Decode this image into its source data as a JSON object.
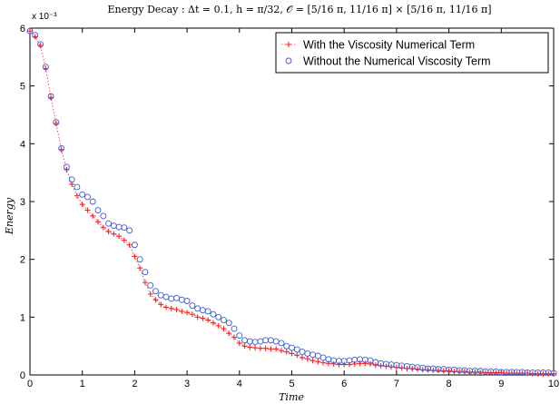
{
  "chart_data": {
    "type": "scatter",
    "title": "Energy Decay : Δt = 0.1, h = π/32,  𝒪 = [5/16 π, 11/16 π] × [5/16 π, 11/16 π]",
    "xlabel": "Time",
    "ylabel": "Energy",
    "y_multiplier": "x 10⁻³",
    "xlim": [
      0,
      10
    ],
    "ylim": [
      0,
      6
    ],
    "x_ticks": [
      0,
      1,
      2,
      3,
      4,
      5,
      6,
      7,
      8,
      9,
      10
    ],
    "y_ticks": [
      0,
      1,
      2,
      3,
      4,
      5,
      6
    ],
    "grid": false,
    "legend_position": "top-right",
    "series": [
      {
        "name": "With the Viscosity Numerical Term",
        "color": "#ff2020",
        "marker": "plus",
        "line": "dotted",
        "x": [
          0,
          0.1,
          0.2,
          0.3,
          0.4,
          0.5,
          0.6,
          0.7,
          0.8,
          0.9,
          1.0,
          1.1,
          1.2,
          1.3,
          1.4,
          1.5,
          1.6,
          1.7,
          1.8,
          1.9,
          2.0,
          2.1,
          2.2,
          2.3,
          2.4,
          2.5,
          2.6,
          2.7,
          2.8,
          2.9,
          3.0,
          3.1,
          3.2,
          3.3,
          3.4,
          3.5,
          3.6,
          3.7,
          3.8,
          3.9,
          4.0,
          4.1,
          4.2,
          4.3,
          4.4,
          4.5,
          4.6,
          4.7,
          4.8,
          4.9,
          5.0,
          5.1,
          5.2,
          5.3,
          5.4,
          5.5,
          5.6,
          5.7,
          5.8,
          5.9,
          6.0,
          6.1,
          6.2,
          6.3,
          6.4,
          6.5,
          6.6,
          6.7,
          6.8,
          6.9,
          7.0,
          7.1,
          7.2,
          7.3,
          7.4,
          7.5,
          7.6,
          7.7,
          7.8,
          7.9,
          8.0,
          8.1,
          8.2,
          8.3,
          8.4,
          8.5,
          8.6,
          8.7,
          8.8,
          8.9,
          9.0,
          9.1,
          9.2,
          9.3,
          9.4,
          9.5,
          9.6,
          9.7,
          9.8,
          9.9,
          10.0
        ],
        "y": [
          5.95,
          5.85,
          5.7,
          5.3,
          4.8,
          4.35,
          3.9,
          3.55,
          3.3,
          3.1,
          2.95,
          2.85,
          2.75,
          2.65,
          2.55,
          2.48,
          2.44,
          2.4,
          2.33,
          2.25,
          2.05,
          1.85,
          1.6,
          1.4,
          1.3,
          1.22,
          1.17,
          1.15,
          1.13,
          1.1,
          1.08,
          1.05,
          1.0,
          0.98,
          0.95,
          0.9,
          0.85,
          0.8,
          0.72,
          0.65,
          0.55,
          0.5,
          0.48,
          0.47,
          0.46,
          0.46,
          0.45,
          0.45,
          0.42,
          0.4,
          0.37,
          0.34,
          0.3,
          0.28,
          0.25,
          0.23,
          0.21,
          0.2,
          0.19,
          0.18,
          0.18,
          0.18,
          0.19,
          0.2,
          0.2,
          0.19,
          0.17,
          0.16,
          0.15,
          0.14,
          0.13,
          0.12,
          0.11,
          0.11,
          0.1,
          0.09,
          0.09,
          0.08,
          0.08,
          0.07,
          0.07,
          0.06,
          0.06,
          0.06,
          0.05,
          0.05,
          0.05,
          0.04,
          0.04,
          0.04,
          0.04,
          0.03,
          0.03,
          0.03,
          0.03,
          0.03,
          0.02,
          0.02,
          0.02,
          0.02,
          0.02
        ]
      },
      {
        "name": "Without the Numerical Viscosity Term",
        "color": "#3b5bd6",
        "marker": "circle",
        "line": "none",
        "x": [
          0,
          0.1,
          0.2,
          0.3,
          0.4,
          0.5,
          0.6,
          0.7,
          0.8,
          0.9,
          1.0,
          1.1,
          1.2,
          1.3,
          1.4,
          1.5,
          1.6,
          1.7,
          1.8,
          1.9,
          2.0,
          2.1,
          2.2,
          2.3,
          2.4,
          2.5,
          2.6,
          2.7,
          2.8,
          2.9,
          3.0,
          3.1,
          3.2,
          3.3,
          3.4,
          3.5,
          3.6,
          3.7,
          3.8,
          3.9,
          4.0,
          4.1,
          4.2,
          4.3,
          4.4,
          4.5,
          4.6,
          4.7,
          4.8,
          4.9,
          5.0,
          5.1,
          5.2,
          5.3,
          5.4,
          5.5,
          5.6,
          5.7,
          5.8,
          5.9,
          6.0,
          6.1,
          6.2,
          6.3,
          6.4,
          6.5,
          6.6,
          6.7,
          6.8,
          6.9,
          7.0,
          7.1,
          7.2,
          7.3,
          7.4,
          7.5,
          7.6,
          7.7,
          7.8,
          7.9,
          8.0,
          8.1,
          8.2,
          8.3,
          8.4,
          8.5,
          8.6,
          8.7,
          8.8,
          8.9,
          9.0,
          9.1,
          9.2,
          9.3,
          9.4,
          9.5,
          9.6,
          9.7,
          9.8,
          9.9,
          10.0
        ],
        "y": [
          5.95,
          5.88,
          5.72,
          5.33,
          4.82,
          4.37,
          3.92,
          3.6,
          3.38,
          3.25,
          3.12,
          3.08,
          3.0,
          2.85,
          2.75,
          2.62,
          2.58,
          2.56,
          2.55,
          2.5,
          2.25,
          2.0,
          1.78,
          1.55,
          1.45,
          1.38,
          1.35,
          1.32,
          1.33,
          1.3,
          1.28,
          1.2,
          1.15,
          1.12,
          1.1,
          1.05,
          1.0,
          0.95,
          0.9,
          0.8,
          0.68,
          0.6,
          0.58,
          0.57,
          0.58,
          0.6,
          0.6,
          0.58,
          0.55,
          0.5,
          0.47,
          0.44,
          0.4,
          0.37,
          0.35,
          0.33,
          0.3,
          0.27,
          0.25,
          0.24,
          0.24,
          0.25,
          0.26,
          0.27,
          0.26,
          0.25,
          0.22,
          0.2,
          0.19,
          0.18,
          0.17,
          0.16,
          0.15,
          0.14,
          0.13,
          0.12,
          0.11,
          0.11,
          0.1,
          0.1,
          0.09,
          0.09,
          0.08,
          0.08,
          0.07,
          0.07,
          0.07,
          0.06,
          0.06,
          0.06,
          0.05,
          0.05,
          0.05,
          0.05,
          0.05,
          0.04,
          0.04,
          0.04,
          0.04,
          0.04,
          0.03
        ]
      }
    ]
  }
}
